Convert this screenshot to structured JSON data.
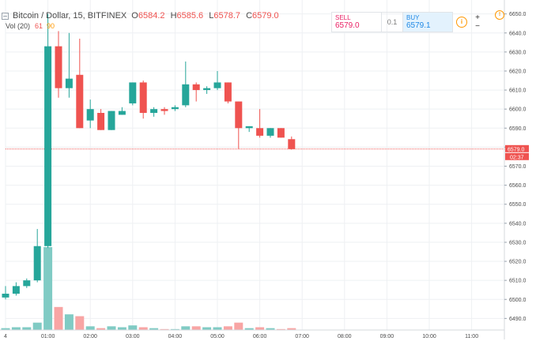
{
  "header": {
    "symbol": "Bitcoin / Dollar, 15, BITFINEX",
    "o_label": "O",
    "o": "6584.2",
    "h_label": "H",
    "h": "6585.6",
    "l_label": "L",
    "l": "6578.7",
    "c_label": "C",
    "c": "6579.0"
  },
  "volume_indicator": {
    "label": "Vol (20)",
    "value1": "61",
    "value2": "90"
  },
  "trade_panel": {
    "sell_label": "SELL",
    "sell_price": "6579.0",
    "quantity": "0.1",
    "buy_label": "BUY",
    "buy_price": "6579.1",
    "info_glyph": "i",
    "zoom_in": "+",
    "zoom_out": "−"
  },
  "warning_glyph": "!",
  "price_tag": {
    "price": "6579.0",
    "countdown": "02:37"
  },
  "colors": {
    "up": "#26a69a",
    "down": "#ef5350",
    "up_volume": "#80cbc4",
    "down_volume": "#f8a5a4",
    "grid": "#eef0f3",
    "price_line": "#ef5350"
  },
  "icons": {
    "symbol_toggle": "minus-square-icon",
    "info": "info-circle-icon",
    "warning": "warning-circle-icon"
  },
  "chart_data": {
    "type": "candlestick",
    "y_ticks": [
      "6490.0",
      "6500.0",
      "6510.0",
      "6520.0",
      "6530.0",
      "6540.0",
      "6550.0",
      "6560.0",
      "6570.0",
      "6580.0",
      "6590.0",
      "6600.0",
      "6610.0",
      "6620.0",
      "6630.0",
      "6640.0",
      "6650.0"
    ],
    "ylim": [
      6486,
      6654
    ],
    "x_ticks": [
      "4",
      "01:00",
      "02:00",
      "03:00",
      "04:00",
      "05:00",
      "06:00",
      "07:00",
      "08:00",
      "09:00",
      "10:00",
      "11:00"
    ],
    "last_price": 6579.0,
    "candles": [
      {
        "t": 0.0,
        "o": 6501,
        "h": 6507,
        "l": 6500,
        "c": 6503,
        "v": 2
      },
      {
        "t": 0.25,
        "o": 6503,
        "h": 6509,
        "l": 6502,
        "c": 6507,
        "v": 3
      },
      {
        "t": 0.5,
        "o": 6507,
        "h": 6511,
        "l": 6506,
        "c": 6510,
        "v": 3
      },
      {
        "t": 0.75,
        "o": 6510,
        "h": 6537,
        "l": 6509,
        "c": 6528,
        "v": 8
      },
      {
        "t": 1.0,
        "o": 6528,
        "h": 6650,
        "l": 6527,
        "c": 6633,
        "v": 90
      },
      {
        "t": 1.25,
        "o": 6633,
        "h": 6641,
        "l": 6606,
        "c": 6611,
        "v": 25
      },
      {
        "t": 1.5,
        "o": 6611,
        "h": 6640,
        "l": 6606,
        "c": 6616,
        "v": 17
      },
      {
        "t": 1.75,
        "o": 6618,
        "h": 6637,
        "l": 6590,
        "c": 6590,
        "v": 15
      },
      {
        "t": 2.0,
        "o": 6594,
        "h": 6605,
        "l": 6590,
        "c": 6600,
        "v": 4
      },
      {
        "t": 2.25,
        "o": 6598,
        "h": 6600,
        "l": 6589,
        "c": 6589,
        "v": 2
      },
      {
        "t": 2.5,
        "o": 6589,
        "h": 6599,
        "l": 6589,
        "c": 6599,
        "v": 4
      },
      {
        "t": 2.75,
        "o": 6597,
        "h": 6601,
        "l": 6597,
        "c": 6599,
        "v": 3
      },
      {
        "t": 3.0,
        "o": 6603,
        "h": 6614,
        "l": 6602,
        "c": 6614,
        "v": 5
      },
      {
        "t": 3.25,
        "o": 6614,
        "h": 6615,
        "l": 6595,
        "c": 6598,
        "v": 3
      },
      {
        "t": 3.5,
        "o": 6598,
        "h": 6601,
        "l": 6596,
        "c": 6600,
        "v": 2
      },
      {
        "t": 3.75,
        "o": 6600,
        "h": 6601,
        "l": 6597,
        "c": 6599,
        "v": 1
      },
      {
        "t": 4.0,
        "o": 6600,
        "h": 6602,
        "l": 6599,
        "c": 6601,
        "v": 1
      },
      {
        "t": 4.25,
        "o": 6602,
        "h": 6625,
        "l": 6601,
        "c": 6613,
        "v": 4
      },
      {
        "t": 4.5,
        "o": 6613,
        "h": 6614,
        "l": 6604,
        "c": 6610,
        "v": 4
      },
      {
        "t": 4.75,
        "o": 6610,
        "h": 6612,
        "l": 6608,
        "c": 6611,
        "v": 3
      },
      {
        "t": 5.0,
        "o": 6611,
        "h": 6620,
        "l": 6610,
        "c": 6614,
        "v": 3
      },
      {
        "t": 5.25,
        "o": 6614,
        "h": 6614,
        "l": 6603,
        "c": 6604,
        "v": 4
      },
      {
        "t": 5.5,
        "o": 6604,
        "h": 6604,
        "l": 6579,
        "c": 6590,
        "v": 8
      },
      {
        "t": 5.75,
        "o": 6590,
        "h": 6591,
        "l": 6588,
        "c": 6591,
        "v": 2
      },
      {
        "t": 6.0,
        "o": 6590,
        "h": 6600,
        "l": 6585,
        "c": 6586,
        "v": 3
      },
      {
        "t": 6.25,
        "o": 6586,
        "h": 6590,
        "l": 6585,
        "c": 6590,
        "v": 2
      },
      {
        "t": 6.5,
        "o": 6590,
        "h": 6590,
        "l": 6585,
        "c": 6585,
        "v": 1
      },
      {
        "t": 6.75,
        "o": 6584.2,
        "h": 6585.6,
        "l": 6578.7,
        "c": 6579.0,
        "v": 2
      }
    ]
  }
}
